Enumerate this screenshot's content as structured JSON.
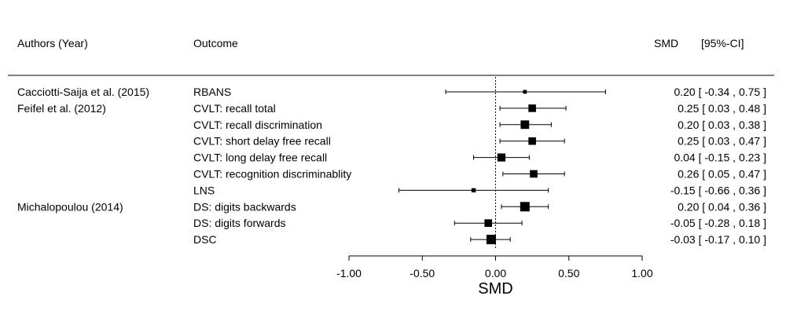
{
  "chart_data": {
    "type": "forest",
    "headers": {
      "authors": "Authors (Year)",
      "outcome": "Outcome",
      "smd": "SMD",
      "ci": "[95%-CI]"
    },
    "rows": [
      {
        "author": "Cacciotti-Saija et al. (2015)",
        "outcome": "RBANS",
        "smd": 0.2,
        "lower": -0.34,
        "upper": 0.75,
        "weight": 0.4,
        "label": "0.20 [ -0.34 , 0.75 ]"
      },
      {
        "author": "Feifel et al. (2012)",
        "outcome": "CVLT: recall total",
        "smd": 0.25,
        "lower": 0.03,
        "upper": 0.48,
        "weight": 0.8,
        "label": "0.25 [  0.03 , 0.48 ]"
      },
      {
        "author": "",
        "outcome": "CVLT: recall discrimination",
        "smd": 0.2,
        "lower": 0.03,
        "upper": 0.38,
        "weight": 0.9,
        "label": "0.20 [  0.03 , 0.38 ]"
      },
      {
        "author": "",
        "outcome": "CVLT: short delay free recall",
        "smd": 0.25,
        "lower": 0.03,
        "upper": 0.47,
        "weight": 0.8,
        "label": "0.25 [  0.03 , 0.47 ]"
      },
      {
        "author": "",
        "outcome": "CVLT: long delay free recall",
        "smd": 0.04,
        "lower": -0.15,
        "upper": 0.23,
        "weight": 0.85,
        "label": "0.04 [ -0.15 , 0.23 ]"
      },
      {
        "author": "",
        "outcome": "CVLT: recognition discriminablity",
        "smd": 0.26,
        "lower": 0.05,
        "upper": 0.47,
        "weight": 0.8,
        "label": "0.26 [  0.05 , 0.47 ]"
      },
      {
        "author": "",
        "outcome": "LNS",
        "smd": -0.15,
        "lower": -0.66,
        "upper": 0.36,
        "weight": 0.45,
        "label": "-0.15 [ -0.66 , 0.36 ]"
      },
      {
        "author": "Michalopoulou (2014)",
        "outcome": "DS: digits backwards",
        "smd": 0.2,
        "lower": 0.04,
        "upper": 0.36,
        "weight": 1.0,
        "label": "0.20 [  0.04 , 0.36 ]"
      },
      {
        "author": "",
        "outcome": "DS: digits forwards",
        "smd": -0.05,
        "lower": -0.28,
        "upper": 0.18,
        "weight": 0.8,
        "label": "-0.05 [ -0.28 , 0.18 ]"
      },
      {
        "author": "",
        "outcome": "DSC",
        "smd": -0.03,
        "lower": -0.17,
        "upper": 0.1,
        "weight": 1.0,
        "label": "-0.03 [ -0.17 , 0.10 ]"
      }
    ],
    "xlim": [
      -1.0,
      1.0
    ],
    "xticks": [
      -1.0,
      -0.5,
      0.0,
      0.5,
      1.0
    ],
    "xtick_labels": [
      "-1.00",
      "-0.50",
      "0.00",
      "0.50",
      "1.00"
    ],
    "xlabel": "SMD",
    "reference_line": 0,
    "colors": {
      "ink": "#000000",
      "background": "#ffffff"
    }
  }
}
